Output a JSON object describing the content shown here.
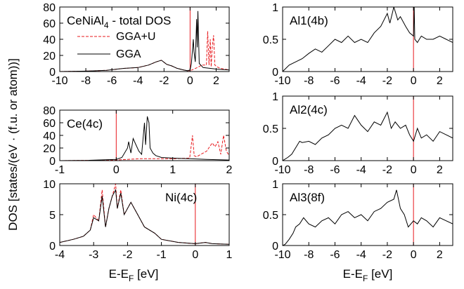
{
  "figure": {
    "ylabel": "DOS [states/(eV · (f.u. or atom))]",
    "xlabel_left": {
      "main": "E-E",
      "sub": "F",
      "unit": " [eV]"
    },
    "xlabel_right": {
      "main": "E-E",
      "sub": "F",
      "unit": " [eV]"
    }
  },
  "colors": {
    "gga_u": "#e8191d",
    "gga": "#000000",
    "fermi": "#e8191d"
  },
  "chart_data": [
    {
      "type": "line",
      "label": "CeNiAl",
      "label_sub": "4",
      "label_suffix": " - total DOS",
      "xlim": [
        -10,
        3
      ],
      "ylim": [
        0,
        80
      ],
      "xticks": [
        -10,
        -8,
        -6,
        -4,
        -2,
        0,
        2
      ],
      "yticks": [
        0,
        20,
        40,
        60,
        80
      ],
      "legend": [
        {
          "name": "GGA+U",
          "style": "dashed",
          "color": "#e8191d"
        },
        {
          "name": "GGA",
          "style": "solid",
          "color": "#000000"
        }
      ],
      "series": [
        {
          "name": "GGA+U",
          "x": [
            -10,
            -8,
            -6.4,
            -5.6,
            -5,
            -4,
            -3.2,
            -2.6,
            -2.2,
            -1.8,
            -1.4,
            -1,
            -0.5,
            -0.2,
            0,
            0.3,
            0.55,
            0.9,
            1.25,
            1.35,
            1.45,
            1.55,
            1.62,
            1.7,
            1.8,
            1.9,
            2.05,
            2.3,
            3
          ],
          "y": [
            0,
            0.5,
            1.5,
            3,
            4,
            5,
            8,
            12,
            14,
            9,
            7,
            4,
            2,
            1,
            1,
            3,
            5,
            8,
            8,
            50,
            8,
            40,
            6,
            30,
            45,
            8,
            6,
            4,
            2
          ]
        },
        {
          "name": "GGA",
          "x": [
            -10,
            -8,
            -6.4,
            -5.6,
            -5,
            -4,
            -3.2,
            -2.6,
            -2.2,
            -1.8,
            -1.4,
            -1,
            -0.5,
            -0.2,
            0,
            0.1,
            0.25,
            0.3,
            0.4,
            0.5,
            0.55,
            0.6,
            0.7,
            1,
            1.5,
            2,
            3
          ],
          "y": [
            0,
            0.5,
            1.5,
            3,
            4,
            5,
            8,
            12,
            14,
            9,
            7,
            4,
            2,
            1,
            2,
            10,
            40,
            25,
            12,
            65,
            30,
            75,
            10,
            5,
            4,
            3,
            2
          ]
        }
      ],
      "fermi": 0
    },
    {
      "type": "line",
      "label": "Ce(4c)",
      "xlim": [
        -1,
        2
      ],
      "ylim": [
        0,
        80
      ],
      "xticks": [
        -1,
        0,
        1,
        2
      ],
      "yticks": [
        0,
        20,
        40,
        60,
        80
      ],
      "series": [
        {
          "name": "GGA+U",
          "x": [
            -1,
            -0.5,
            0,
            0.2,
            0.3,
            0.4,
            0.5,
            0.6,
            0.7,
            1,
            1.3,
            1.35,
            1.38,
            1.42,
            1.5,
            1.6,
            1.7,
            1.75,
            1.8,
            1.85,
            1.9,
            1.95,
            2
          ],
          "y": [
            0,
            0.5,
            1,
            2,
            2.5,
            3,
            3,
            3,
            3,
            3,
            4,
            40,
            8,
            6,
            10,
            15,
            28,
            22,
            30,
            10,
            40,
            15,
            8
          ]
        },
        {
          "name": "GGA",
          "x": [
            -1,
            -0.5,
            0,
            0.1,
            0.2,
            0.22,
            0.26,
            0.3,
            0.35,
            0.4,
            0.45,
            0.5,
            0.52,
            0.55,
            0.58,
            0.6,
            0.65,
            0.7,
            0.8,
            1,
            1.3,
            1.6,
            2
          ],
          "y": [
            0,
            0.5,
            2,
            5,
            20,
            30,
            12,
            35,
            25,
            15,
            10,
            60,
            25,
            70,
            60,
            20,
            12,
            8,
            5,
            4,
            3,
            2,
            1
          ]
        }
      ],
      "fermi": 0
    },
    {
      "type": "line",
      "label": "Ni(4c)",
      "xlim": [
        -4,
        1
      ],
      "ylim": [
        0,
        10
      ],
      "xticks": [
        -4,
        -3,
        -2,
        -1,
        0,
        1
      ],
      "yticks": [
        0,
        5,
        10
      ],
      "series": [
        {
          "name": "GGA+U",
          "x": [
            -4,
            -3.6,
            -3.3,
            -3.1,
            -3.0,
            -2.85,
            -2.75,
            -2.65,
            -2.55,
            -2.45,
            -2.35,
            -2.3,
            -2.2,
            -2.1,
            -1.9,
            -1.7,
            -1.5,
            -1.2,
            -1,
            -0.5,
            0,
            0.3,
            0.5,
            1
          ],
          "y": [
            0.5,
            1,
            1.5,
            2.5,
            5,
            4,
            9,
            3,
            6,
            8,
            10,
            6,
            9,
            5,
            7,
            5,
            3,
            2,
            1,
            0.5,
            0.3,
            0.5,
            0.3,
            0.2
          ]
        },
        {
          "name": "GGA",
          "x": [
            -4,
            -3.6,
            -3.3,
            -3.1,
            -3.0,
            -2.85,
            -2.75,
            -2.65,
            -2.55,
            -2.45,
            -2.35,
            -2.3,
            -2.2,
            -2.1,
            -1.9,
            -1.7,
            -1.5,
            -1.2,
            -1,
            -0.5,
            0,
            0.3,
            0.5,
            1
          ],
          "y": [
            0.5,
            1,
            1.5,
            2.5,
            4.5,
            4,
            8,
            3,
            6,
            8,
            9,
            6,
            8.5,
            5,
            7,
            5,
            3,
            2,
            1,
            0.5,
            0.3,
            0.5,
            0.3,
            0.2
          ]
        }
      ],
      "fermi": 0
    },
    {
      "type": "line",
      "label": "Al1(4b)",
      "xlim": [
        -10,
        3
      ],
      "ylim": [
        0,
        1.0
      ],
      "xticks": [
        -10,
        -8,
        -6,
        -4,
        -2,
        0,
        2
      ],
      "yticks": [
        0,
        0.5,
        1.0
      ],
      "series": [
        {
          "name": "GGA",
          "x": [
            -10,
            -9.5,
            -9,
            -8.5,
            -8,
            -7.5,
            -7,
            -6.5,
            -6,
            -5.5,
            -5,
            -4.5,
            -4,
            -3.5,
            -3,
            -2.5,
            -2,
            -1.8,
            -1.5,
            -1.2,
            -1,
            -0.6,
            -0.3,
            0,
            0.05,
            0.1,
            0.3,
            0.6,
            1,
            1.5,
            2,
            2.5,
            3
          ],
          "y": [
            0,
            0.1,
            0.15,
            0.2,
            0.28,
            0.35,
            0.3,
            0.4,
            0.5,
            0.45,
            0.55,
            0.45,
            0.5,
            0.45,
            0.6,
            0.7,
            0.9,
            0.75,
            1.0,
            0.8,
            0.85,
            0.7,
            0.6,
            0.55,
            1.05,
            0.5,
            0.45,
            0.55,
            0.5,
            0.5,
            0.55,
            0.5,
            0.45
          ]
        }
      ],
      "fermi": 0
    },
    {
      "type": "line",
      "label": "Al2(4c)",
      "xlim": [
        -10,
        3
      ],
      "ylim": [
        0,
        1.0
      ],
      "xticks": [
        -10,
        -8,
        -6,
        -4,
        -2,
        0,
        2
      ],
      "yticks": [
        0,
        0.5,
        1.0
      ],
      "series": [
        {
          "name": "GGA",
          "x": [
            -10,
            -9.6,
            -9.3,
            -9,
            -8.7,
            -8.5,
            -8,
            -7.5,
            -7,
            -6.5,
            -6,
            -5.5,
            -5,
            -4.5,
            -4,
            -3.5,
            -3,
            -2.5,
            -2,
            -1.7,
            -1.4,
            -1,
            -0.6,
            -0.3,
            0,
            0.3,
            0.6,
            1,
            1.5,
            2,
            2.5,
            3
          ],
          "y": [
            0,
            0.05,
            0.1,
            0.2,
            0.3,
            0.28,
            0.3,
            0.25,
            0.35,
            0.4,
            0.5,
            0.55,
            0.5,
            0.7,
            0.55,
            0.45,
            0.6,
            0.55,
            0.75,
            0.5,
            0.6,
            0.5,
            0.55,
            0.4,
            0.3,
            0.5,
            0.35,
            0.4,
            0.3,
            0.45,
            0.4,
            0.35
          ]
        }
      ],
      "fermi": 0
    },
    {
      "type": "line",
      "label": "Al3(8f)",
      "xlim": [
        -10,
        3
      ],
      "ylim": [
        0,
        1.0
      ],
      "xticks": [
        -10,
        -8,
        -6,
        -4,
        -2,
        0,
        2
      ],
      "yticks": [
        0,
        0.5,
        1.0
      ],
      "series": [
        {
          "name": "GGA",
          "x": [
            -10,
            -9.8,
            -9.5,
            -9.2,
            -9,
            -8.7,
            -8.4,
            -8,
            -7.5,
            -7,
            -6.5,
            -6,
            -5.5,
            -5,
            -4.5,
            -4,
            -3.5,
            -3,
            -2.5,
            -2,
            -1.5,
            -1.3,
            -1,
            -0.7,
            -0.4,
            0,
            0.3,
            0.6,
            1,
            1.5,
            2,
            2.5,
            3
          ],
          "y": [
            0,
            0.02,
            0.1,
            0.2,
            0.3,
            0.35,
            0.45,
            0.35,
            0.3,
            0.4,
            0.45,
            0.35,
            0.5,
            0.55,
            0.45,
            0.5,
            0.4,
            0.55,
            0.6,
            0.7,
            0.75,
            0.9,
            0.6,
            0.5,
            0.3,
            0.4,
            0.35,
            0.45,
            0.4,
            0.3,
            0.45,
            0.4,
            0.35
          ]
        }
      ],
      "fermi": 0
    }
  ]
}
